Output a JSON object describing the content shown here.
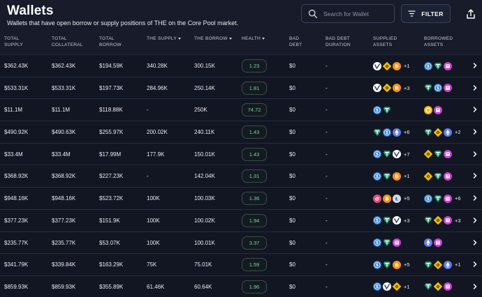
{
  "header": {
    "title": "Wallets",
    "subtitle": "Wallets that have open borrow or supply positions of THE on the Core Pool market.",
    "search_placeholder": "Search for Wallet",
    "filter_label": "FILTER"
  },
  "columns": [
    {
      "key": "total_supply",
      "line1": "TOTAL",
      "line2": "SUPPLY"
    },
    {
      "key": "total_collateral",
      "line1": "TOTAL",
      "line2": "COLLATERAL"
    },
    {
      "key": "total_borrow",
      "line1": "TOTAL",
      "line2": "BORROW"
    },
    {
      "key": "the_supply",
      "line1": "THE SUPPLY",
      "line2": ""
    },
    {
      "key": "the_borrow",
      "line1": "THE BORROW",
      "line2": ""
    },
    {
      "key": "health",
      "line1": "HEALTH",
      "line2": ""
    },
    {
      "key": "bad_debt",
      "line1": "BAD",
      "line2": "DEBT"
    },
    {
      "key": "bad_debt_duration",
      "line1": "BAD DEBT",
      "line2": "DURATION"
    },
    {
      "key": "supplied_assets",
      "line1": "SUPPLIED",
      "line2": "ASSETS"
    },
    {
      "key": "borrowed_assets",
      "line1": "BORROWED",
      "line2": "ASSETS"
    }
  ],
  "colors": {
    "usdc": "#2775ca",
    "usdt": "#26a17b",
    "bnb": "#f0b90b",
    "btc": "#f7931a",
    "eth": "#627eea",
    "the": "#cf3fd8",
    "venus": "#1f2a44",
    "fdusd": "#f0b90b",
    "ltc": "#345d9d",
    "pink": "#e54a7a"
  },
  "rows": [
    {
      "total_supply": "$362.43K",
      "total_collateral": "$362.43K",
      "total_borrow": "$194.59K",
      "the_supply": "340.28K",
      "the_borrow": "300.15K",
      "health": "1.23",
      "bad_debt": "$0",
      "bad_debt_duration": "-",
      "supplied": [
        "venus",
        "bnb",
        "btc"
      ],
      "supplied_more": "+1",
      "borrowed": [
        "usdc",
        "usdt",
        "the"
      ],
      "borrowed_more": ""
    },
    {
      "total_supply": "$533.31K",
      "total_collateral": "$533.31K",
      "total_borrow": "$197.73K",
      "the_supply": "284.96K",
      "the_borrow": "250.14K",
      "health": "1.81",
      "bad_debt": "$0",
      "bad_debt_duration": "-",
      "supplied": [
        "venus",
        "bnb",
        "btc"
      ],
      "supplied_more": "+3",
      "borrowed": [
        "usdt",
        "usdc",
        "the"
      ],
      "borrowed_more": ""
    },
    {
      "total_supply": "$11.1M",
      "total_collateral": "$11.1M",
      "total_borrow": "$118.88K",
      "the_supply": "-",
      "the_borrow": "250K",
      "health": "74.72",
      "bad_debt": "$0",
      "bad_debt_duration": "-",
      "supplied": [
        "usdc",
        "usdt"
      ],
      "supplied_more": "",
      "borrowed": [
        "fdusd",
        "the"
      ],
      "borrowed_more": ""
    },
    {
      "total_supply": "$490.92K",
      "total_collateral": "$490.63K",
      "total_borrow": "$255.97K",
      "the_supply": "200.02K",
      "the_borrow": "240.11K",
      "health": "1.43",
      "bad_debt": "$0",
      "bad_debt_duration": "-",
      "supplied": [
        "usdt",
        "usdc",
        "eth"
      ],
      "supplied_more": "+6",
      "borrowed": [
        "usdt",
        "bnb",
        "eth"
      ],
      "borrowed_more": "+2"
    },
    {
      "total_supply": "$33.4M",
      "total_collateral": "$33.4M",
      "total_borrow": "$17.99M",
      "the_supply": "177.9K",
      "the_borrow": "150.01K",
      "health": "1.43",
      "bad_debt": "$0",
      "bad_debt_duration": "-",
      "supplied": [
        "usdc",
        "usdt",
        "venus"
      ],
      "supplied_more": "+7",
      "borrowed": [
        "bnb",
        "usdt",
        "the"
      ],
      "borrowed_more": ""
    },
    {
      "total_supply": "$368.92K",
      "total_collateral": "$368.92K",
      "total_borrow": "$227.23K",
      "the_supply": "-",
      "the_borrow": "142.04K",
      "health": "1.31",
      "bad_debt": "$0",
      "bad_debt_duration": "-",
      "supplied": [
        "usdc",
        "usdt",
        "btc"
      ],
      "supplied_more": "+1",
      "borrowed": [
        "bnb",
        "usdt",
        "the"
      ],
      "borrowed_more": ""
    },
    {
      "total_supply": "$948.16K",
      "total_collateral": "$948.16K",
      "total_borrow": "$523.72K",
      "the_supply": "100K",
      "the_borrow": "100.03K",
      "health": "1.36",
      "bad_debt": "$0",
      "bad_debt_duration": "-",
      "supplied": [
        "pink",
        "btc",
        "ltc"
      ],
      "supplied_more": "+5",
      "borrowed": [
        "usdc",
        "usdt",
        "the"
      ],
      "borrowed_more": "+6"
    },
    {
      "total_supply": "$377.23K",
      "total_collateral": "$377.23K",
      "total_borrow": "$151.9K",
      "the_supply": "100K",
      "the_borrow": "100.02K",
      "health": "1.94",
      "bad_debt": "$0",
      "bad_debt_duration": "-",
      "supplied": [
        "usdc",
        "usdt",
        "venus"
      ],
      "supplied_more": "+3",
      "borrowed": [
        "usdt",
        "bnb",
        "the"
      ],
      "borrowed_more": "+3"
    },
    {
      "total_supply": "$235.77K",
      "total_collateral": "$235.77K",
      "total_borrow": "$53.07K",
      "the_supply": "100K",
      "the_borrow": "100.01K",
      "health": "3.37",
      "bad_debt": "$0",
      "bad_debt_duration": "-",
      "supplied": [
        "usdc",
        "usdt",
        "the"
      ],
      "supplied_more": "",
      "borrowed": [
        "eth",
        "the"
      ],
      "borrowed_more": ""
    },
    {
      "total_supply": "$341.79K",
      "total_collateral": "$339.84K",
      "total_borrow": "$163.29K",
      "the_supply": "75K",
      "the_borrow": "75.01K",
      "health": "1.59",
      "bad_debt": "$0",
      "bad_debt_duration": "-",
      "supplied": [
        "usdc",
        "usdt",
        "btc"
      ],
      "supplied_more": "+5",
      "borrowed": [
        "usdt",
        "bnb",
        "eth"
      ],
      "borrowed_more": "+1"
    },
    {
      "total_supply": "$859.93K",
      "total_collateral": "$859.93K",
      "total_borrow": "$355.89K",
      "the_supply": "61.46K",
      "the_borrow": "60.64K",
      "health": "1.96",
      "bad_debt": "$0",
      "bad_debt_duration": "-",
      "supplied": [
        "usdc",
        "venus",
        "bnb"
      ],
      "supplied_more": "+1",
      "borrowed": [
        "usdt",
        "bnb",
        "the"
      ],
      "borrowed_more": ""
    }
  ]
}
